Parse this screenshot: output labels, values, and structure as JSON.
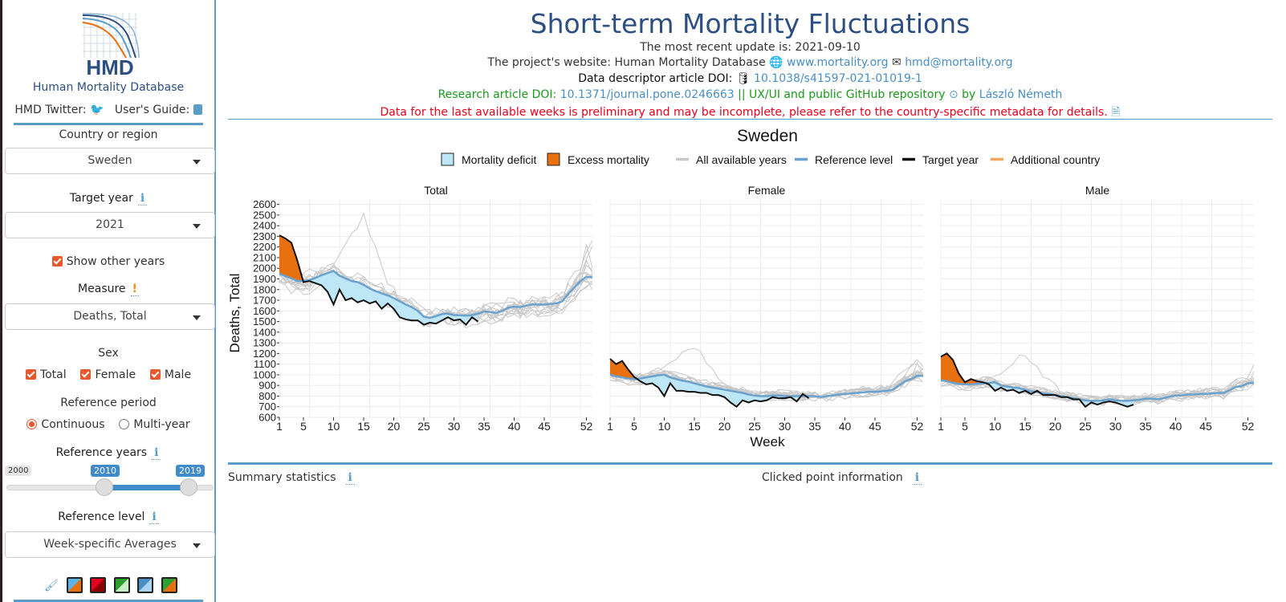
{
  "sidebar": {
    "logo_text": "HMD",
    "org_name": "Human Mortality Database",
    "twitter_label": "HMD Twitter:",
    "guide_label": "User's Guide:",
    "country_label": "Country or region",
    "country_value": "Sweden",
    "target_year_label": "Target year",
    "target_year_value": "2021",
    "show_other_years": "Show other years",
    "measure_label": "Measure",
    "measure_value": "Deaths, Total",
    "sex_label": "Sex",
    "sex_options": [
      "Total",
      "Female",
      "Male"
    ],
    "ref_period_label": "Reference period",
    "ref_period_options": [
      "Continuous",
      "Multi-year"
    ],
    "ref_years_label": "Reference years",
    "ref_years_min": "2000",
    "ref_years_from": "2010",
    "ref_years_to": "2019",
    "ref_level_label": "Reference level",
    "ref_level_value": "Week-specific Averages",
    "palette_colors": [
      [
        "#5ab4e6",
        "#e8700f"
      ],
      [
        "#e8001c",
        "#8b0000"
      ],
      [
        "#2ca02c",
        "#c8f0c8"
      ],
      [
        "#4a8fc4",
        "#a8d4f0"
      ],
      [
        "#2ca02c",
        "#e8700f"
      ]
    ]
  },
  "header": {
    "title": "Short-term Mortality Fluctuations",
    "update_line": "The most recent update is: 2021-09-10",
    "website_prefix": "The project's website: Human Mortality Database",
    "website_link": "www.mortality.org",
    "email_link": "hmd@mortality.org",
    "descriptor_prefix": "Data descriptor article DOI:",
    "descriptor_doi": "10.1038/s41597-021-01019-1",
    "research_prefix": "Research article DOI:",
    "research_doi": "10.1371/journal.pone.0246663",
    "github_text": "|| UX/UI and public GitHub repository",
    "by_text": "by",
    "author": "László Németh",
    "warning": "Data for the last available weeks is preliminary and may be incomplete, please refer to the country-specific metadata for details."
  },
  "bottom": {
    "summary_label": "Summary statistics",
    "clicked_label": "Clicked point information"
  },
  "colors": {
    "deficit": "#bde6f6",
    "excess": "#e8700f",
    "reference": "#6aa2cd",
    "target": "#111111",
    "other_years": "#c8c8c8",
    "additional": "#f4a55c"
  },
  "chart_data": {
    "type": "line",
    "title": "Sweden",
    "xlabel": "Week",
    "ylabel": "Deaths, Total",
    "xlim": [
      1,
      53
    ],
    "ylim": [
      600,
      2650
    ],
    "x_ticks": [
      1,
      5,
      10,
      15,
      20,
      25,
      30,
      35,
      40,
      45,
      52
    ],
    "y_ticks": [
      600,
      700,
      800,
      900,
      1000,
      1100,
      1200,
      1300,
      1400,
      1500,
      1600,
      1700,
      1800,
      1900,
      2000,
      2100,
      2200,
      2300,
      2400,
      2500,
      2600
    ],
    "legend": [
      "Mortality deficit",
      "Excess mortality",
      "All available years",
      "Reference level",
      "Target year",
      "Additional country"
    ],
    "legend_position": "top",
    "grid": true,
    "panels": [
      {
        "name": "Total",
        "reference": [
          1950,
          1925,
          1905,
          1880,
          1880,
          1890,
          1910,
          1935,
          1955,
          1975,
          1930,
          1905,
          1880,
          1870,
          1845,
          1810,
          1785,
          1765,
          1745,
          1720,
          1690,
          1660,
          1635,
          1600,
          1545,
          1535,
          1550,
          1570,
          1575,
          1560,
          1560,
          1555,
          1560,
          1575,
          1595,
          1590,
          1580,
          1600,
          1630,
          1640,
          1635,
          1650,
          1660,
          1660,
          1660,
          1665,
          1670,
          1690,
          1760,
          1820,
          1880,
          1920,
          1915
        ],
        "target": [
          2310,
          2280,
          2240,
          2070,
          1870,
          1880,
          1860,
          1840,
          1780,
          1660,
          1800,
          1700,
          1720,
          1680,
          1700,
          1670,
          1690,
          1620,
          1670,
          1620,
          1540,
          1520,
          1510,
          1510,
          1470,
          1490,
          1480,
          1510,
          1540,
          1510,
          1520,
          1470,
          1540,
          1500
        ]
      },
      {
        "name": "Female",
        "reference": [
          1000,
          985,
          975,
          965,
          960,
          965,
          975,
          985,
          995,
          1000,
          975,
          960,
          945,
          935,
          920,
          905,
          890,
          880,
          870,
          860,
          850,
          840,
          830,
          815,
          805,
          800,
          800,
          805,
          805,
          800,
          800,
          800,
          800,
          800,
          800,
          790,
          800,
          805,
          815,
          820,
          825,
          830,
          835,
          840,
          840,
          845,
          850,
          860,
          900,
          940,
          960,
          990,
          990
        ],
        "target": [
          1150,
          1100,
          1130,
          1050,
          980,
          940,
          910,
          920,
          880,
          800,
          920,
          850,
          850,
          840,
          840,
          830,
          830,
          810,
          810,
          790,
          740,
          700,
          760,
          740,
          760,
          750,
          760,
          790,
          780,
          780,
          790,
          750,
          820,
          780
        ]
      },
      {
        "name": "Male",
        "reference": [
          950,
          940,
          925,
          915,
          910,
          910,
          915,
          920,
          925,
          930,
          900,
          890,
          880,
          875,
          860,
          845,
          840,
          825,
          820,
          810,
          800,
          790,
          780,
          770,
          760,
          755,
          755,
          760,
          770,
          760,
          755,
          755,
          760,
          765,
          775,
          775,
          770,
          780,
          795,
          805,
          805,
          815,
          815,
          820,
          820,
          825,
          830,
          830,
          855,
          885,
          895,
          920,
          925
        ],
        "target": [
          1170,
          1200,
          1140,
          1010,
          930,
          960,
          940,
          930,
          910,
          850,
          880,
          850,
          860,
          830,
          850,
          820,
          850,
          810,
          810,
          810,
          790,
          790,
          770,
          770,
          700,
          740,
          720,
          740,
          750,
          740,
          720,
          700,
          720
        ]
      }
    ]
  }
}
